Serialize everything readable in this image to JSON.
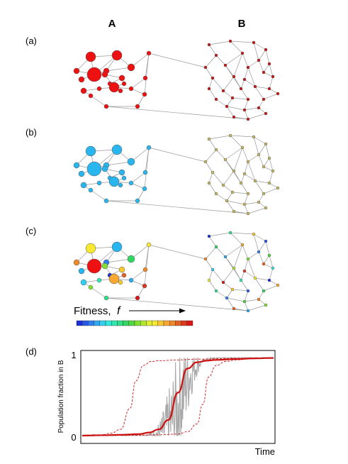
{
  "header": {
    "col_a": "A",
    "col_b": "B"
  },
  "panels": [
    {
      "label": "(a)"
    },
    {
      "label": "(b)"
    },
    {
      "label": "(c)"
    }
  ],
  "legend": {
    "text": "Fitness,",
    "symbol": "f",
    "colors": [
      "#1a2fd6",
      "#2a55e8",
      "#2f7df0",
      "#2fa8f2",
      "#2fd0f0",
      "#30e8d8",
      "#30e8b0",
      "#30e088",
      "#30d860",
      "#50d840",
      "#80e030",
      "#b0e830",
      "#e0f030",
      "#f8e830",
      "#f8c830",
      "#f8a830",
      "#f08828",
      "#e86020",
      "#e03820",
      "#d81818"
    ]
  },
  "colors": {
    "a_node": "#ee1111",
    "b_node_a": "#29b6ee",
    "b_node_b": "#c8b860",
    "edge": "#9a9a9a",
    "curve": "#cc1111",
    "noise": "#a8a8a8"
  },
  "panel_d": {
    "label": "(d)",
    "chart_data": {
      "type": "line",
      "ylabel": "Population fraction in B",
      "xlabel": "Time",
      "yticks": [
        "0",
        "1"
      ],
      "ylim": [
        0,
        1
      ],
      "series": [
        {
          "x": [
            0,
            0.1,
            0.2,
            0.3,
            0.35,
            0.4,
            0.45,
            0.5,
            0.55,
            0.6,
            0.65,
            0.7,
            0.8,
            0.9,
            1.0
          ],
          "y": [
            0,
            0.005,
            0.01,
            0.02,
            0.04,
            0.08,
            0.2,
            0.55,
            0.86,
            0.94,
            0.96,
            0.97,
            0.98,
            0.99,
            0.995
          ]
        },
        {
          "x": [
            0,
            0.1,
            0.15,
            0.2,
            0.25,
            0.28,
            0.32,
            0.36,
            0.4,
            0.5,
            0.6,
            0.8,
            1.0
          ],
          "y": [
            0,
            0.01,
            0.03,
            0.08,
            0.35,
            0.7,
            0.9,
            0.95,
            0.96,
            0.97,
            0.98,
            0.99,
            0.995
          ]
        },
        {
          "x": [
            0,
            0.2,
            0.4,
            0.5,
            0.55,
            0.6,
            0.63,
            0.66,
            0.7,
            0.75,
            0.8,
            0.9,
            1.0
          ],
          "y": [
            0,
            0.003,
            0.01,
            0.02,
            0.05,
            0.15,
            0.4,
            0.75,
            0.9,
            0.95,
            0.97,
            0.99,
            0.995
          ]
        }
      ]
    }
  }
}
